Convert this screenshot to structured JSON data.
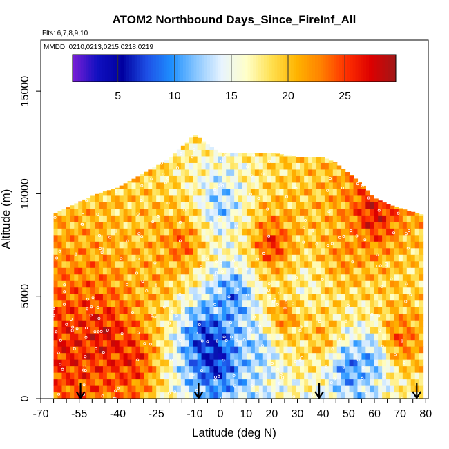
{
  "chart_data": {
    "type": "heatmap",
    "title": "ATOM2 Northbound Days_Since_FireInf_All",
    "subtitle_flights": "Flts: 6,7,8,9,10",
    "subtitle_dates": "MMDD: 0210,0213,0215,0218,0219",
    "xlabel": "Latitude (deg N)",
    "ylabel": "Altitude (m)",
    "xlim": [
      -70,
      81
    ],
    "ylim": [
      0,
      17500
    ],
    "x_ticks": [
      -70,
      -55,
      -40,
      -25,
      -10,
      0,
      10,
      20,
      30,
      40,
      50,
      60,
      70,
      80
    ],
    "x_minor_ticks": [
      -65,
      -60,
      -50,
      -45,
      -35,
      -30,
      -20,
      -15,
      -5,
      5,
      15,
      25,
      35,
      45,
      55,
      65,
      75
    ],
    "y_ticks": [
      0,
      5000,
      10000,
      15000
    ],
    "colorbar": {
      "min": 1,
      "max": 29.5,
      "ticks": [
        5,
        10,
        15,
        20,
        25
      ],
      "colors": [
        "#7a1fd6",
        "#1010c0",
        "#0000a0",
        "#1e50e6",
        "#1e90ff",
        "#8cc8ff",
        "#e8f4ff",
        "#ffffc8",
        "#ffe050",
        "#ffb400",
        "#ff8000",
        "#ff3000",
        "#dc0000",
        "#a01818"
      ]
    },
    "profile_arrows_lat": [
      -54.5,
      -8.5,
      38.5,
      76.5
    ],
    "domain_top_altitude": [
      {
        "lat": -65,
        "alt": 9000
      },
      {
        "lat": -55,
        "alt": 9600
      },
      {
        "lat": -48,
        "alt": 10000
      },
      {
        "lat": -40,
        "alt": 10300
      },
      {
        "lat": -30,
        "alt": 11000
      },
      {
        "lat": -20,
        "alt": 11700
      },
      {
        "lat": -15,
        "alt": 12300
      },
      {
        "lat": -10,
        "alt": 12900
      },
      {
        "lat": -5,
        "alt": 12400
      },
      {
        "lat": 0,
        "alt": 12000
      },
      {
        "lat": 10,
        "alt": 12000
      },
      {
        "lat": 20,
        "alt": 12000
      },
      {
        "lat": 30,
        "alt": 11800
      },
      {
        "lat": 40,
        "alt": 11800
      },
      {
        "lat": 45,
        "alt": 11500
      },
      {
        "lat": 50,
        "alt": 11000
      },
      {
        "lat": 55,
        "alt": 10500
      },
      {
        "lat": 60,
        "alt": 9800
      },
      {
        "lat": 65,
        "alt": 9500
      },
      {
        "lat": 70,
        "alt": 9300
      },
      {
        "lat": 78,
        "alt": 9000
      }
    ],
    "value_field_samples": [
      {
        "lat": -60,
        "alt": 2500,
        "days": 26
      },
      {
        "lat": -45,
        "alt": 3000,
        "days": 27
      },
      {
        "lat": -35,
        "alt": 2000,
        "days": 26
      },
      {
        "lat": -25,
        "alt": 6000,
        "days": 21
      },
      {
        "lat": -15,
        "alt": 7500,
        "days": 24
      },
      {
        "lat": -5,
        "alt": 3000,
        "days": 6
      },
      {
        "lat": -2,
        "alt": 2000,
        "days": 5
      },
      {
        "lat": 0,
        "alt": 9500,
        "days": 12
      },
      {
        "lat": 5,
        "alt": 5000,
        "days": 9
      },
      {
        "lat": 15,
        "alt": 2500,
        "days": 12
      },
      {
        "lat": 20,
        "alt": 7500,
        "days": 26
      },
      {
        "lat": 25,
        "alt": 4000,
        "days": 23
      },
      {
        "lat": 33,
        "alt": 5500,
        "days": 16
      },
      {
        "lat": 40,
        "alt": 3000,
        "days": 21
      },
      {
        "lat": 48,
        "alt": 7000,
        "days": 22
      },
      {
        "lat": 50,
        "alt": 1500,
        "days": 9
      },
      {
        "lat": 58,
        "alt": 2000,
        "days": 11
      },
      {
        "lat": 60,
        "alt": 9000,
        "days": 27
      },
      {
        "lat": 70,
        "alt": 3000,
        "days": 24
      },
      {
        "lat": 75,
        "alt": 6000,
        "days": 19
      }
    ]
  }
}
